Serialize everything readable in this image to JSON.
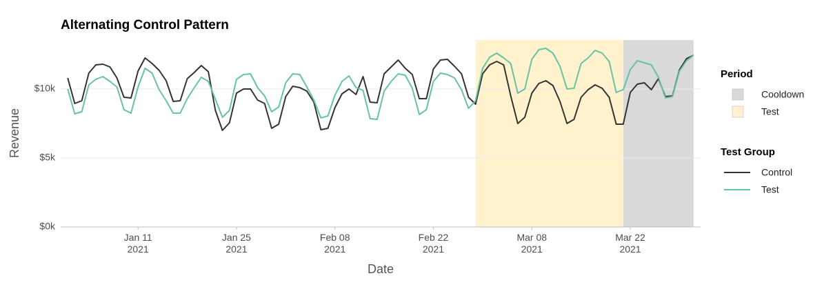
{
  "chart_data": {
    "type": "line",
    "title": "Alternating Control Pattern",
    "x_label": "Date",
    "y_label": "Revenue",
    "x": [
      "2021-01-01",
      "2021-01-02",
      "2021-01-03",
      "2021-01-04",
      "2021-01-05",
      "2021-01-06",
      "2021-01-07",
      "2021-01-08",
      "2021-01-09",
      "2021-01-10",
      "2021-01-11",
      "2021-01-12",
      "2021-01-13",
      "2021-01-14",
      "2021-01-15",
      "2021-01-16",
      "2021-01-17",
      "2021-01-18",
      "2021-01-19",
      "2021-01-20",
      "2021-01-21",
      "2021-01-22",
      "2021-01-23",
      "2021-01-24",
      "2021-01-25",
      "2021-01-26",
      "2021-01-27",
      "2021-01-28",
      "2021-01-29",
      "2021-01-30",
      "2021-01-31",
      "2021-02-01",
      "2021-02-02",
      "2021-02-03",
      "2021-02-04",
      "2021-02-05",
      "2021-02-06",
      "2021-02-07",
      "2021-02-08",
      "2021-02-09",
      "2021-02-10",
      "2021-02-11",
      "2021-02-12",
      "2021-02-13",
      "2021-02-14",
      "2021-02-15",
      "2021-02-16",
      "2021-02-17",
      "2021-02-18",
      "2021-02-19",
      "2021-02-20",
      "2021-02-21",
      "2021-02-22",
      "2021-02-23",
      "2021-02-24",
      "2021-02-25",
      "2021-02-26",
      "2021-02-27",
      "2021-02-28",
      "2021-03-01",
      "2021-03-02",
      "2021-03-03",
      "2021-03-04",
      "2021-03-05",
      "2021-03-06",
      "2021-03-07",
      "2021-03-08",
      "2021-03-09",
      "2021-03-10",
      "2021-03-11",
      "2021-03-12",
      "2021-03-13",
      "2021-03-14",
      "2021-03-15",
      "2021-03-16",
      "2021-03-17",
      "2021-03-18",
      "2021-03-19",
      "2021-03-20",
      "2021-03-21",
      "2021-03-22",
      "2021-03-23",
      "2021-03-24",
      "2021-03-25",
      "2021-03-26",
      "2021-03-27",
      "2021-03-28",
      "2021-03-29",
      "2021-03-30",
      "2021-03-31"
    ],
    "series": [
      {
        "name": "Control",
        "color": "#333333",
        "values": [
          10800,
          8950,
          9150,
          11150,
          11750,
          11800,
          11600,
          10800,
          9400,
          9350,
          11300,
          12250,
          11850,
          11350,
          10600,
          9100,
          9150,
          10750,
          11200,
          11700,
          11250,
          8450,
          7000,
          7550,
          9700,
          10000,
          10000,
          9200,
          8950,
          7150,
          7450,
          9450,
          10200,
          10100,
          9850,
          9050,
          7050,
          7150,
          8650,
          9650,
          10000,
          9600,
          10900,
          9050,
          9000,
          11100,
          11600,
          12100,
          11500,
          11050,
          9300,
          9300,
          11450,
          12100,
          12150,
          11650,
          11100,
          9400,
          8900,
          11100,
          11750,
          12000,
          11750,
          9500,
          7500,
          7950,
          9700,
          10400,
          10600,
          10250,
          9100,
          7500,
          7800,
          9400,
          9950,
          10300,
          10050,
          9400,
          7450,
          7450,
          9750,
          10350,
          10450,
          9950,
          10750,
          9450,
          9500,
          11400,
          12200,
          12450
        ]
      },
      {
        "name": "Test",
        "color": "#66c2a5",
        "values": [
          10000,
          8200,
          8350,
          10300,
          10700,
          10900,
          10550,
          10150,
          8500,
          8250,
          10150,
          11500,
          11150,
          9950,
          9150,
          8250,
          8250,
          9300,
          10100,
          10850,
          10550,
          9250,
          7950,
          8450,
          10700,
          11050,
          11100,
          10100,
          9500,
          8350,
          8700,
          10450,
          11100,
          11050,
          10150,
          9200,
          7900,
          8050,
          9550,
          10550,
          10950,
          10100,
          9900,
          7850,
          7800,
          9850,
          10550,
          11100,
          11000,
          10050,
          8150,
          8500,
          10550,
          11150,
          11050,
          10800,
          9950,
          8600,
          9150,
          11500,
          12300,
          12600,
          12250,
          11850,
          9700,
          10000,
          12150,
          12850,
          12950,
          12600,
          11650,
          10000,
          10050,
          11850,
          12250,
          12800,
          12600,
          12000,
          9750,
          9950,
          11400,
          12050,
          11900,
          11750,
          10850,
          9350,
          9450,
          11300,
          12050,
          12450
        ]
      }
    ],
    "periods": [
      {
        "name": "Cooldown",
        "start": "2021-03-21",
        "end": "2021-03-31",
        "color": "#d9d9d9"
      },
      {
        "name": "Test",
        "start": "2021-02-28",
        "end": "2021-03-21",
        "color": "#fff2cc"
      }
    ],
    "legend_titles": {
      "period": "Period",
      "series": "Test Group"
    },
    "xlim": [
      "2020-12-31",
      "2021-04-01"
    ],
    "xticks": [
      {
        "value": "2021-01-11",
        "label": "Jan 11\n2021"
      },
      {
        "value": "2021-01-25",
        "label": "Jan 25\n2021"
      },
      {
        "value": "2021-02-08",
        "label": "Feb 08\n2021"
      },
      {
        "value": "2021-02-22",
        "label": "Feb 22\n2021"
      },
      {
        "value": "2021-03-08",
        "label": "Mar 08\n2021"
      },
      {
        "value": "2021-03-22",
        "label": "Mar 22\n2021"
      }
    ],
    "ylim": [
      0,
      13550
    ],
    "yticks": [
      {
        "value": 0,
        "label": "$0k"
      },
      {
        "value": 5000,
        "label": "$5k"
      },
      {
        "value": 10000,
        "label": "$10k"
      }
    ],
    "grid": true,
    "legend_position": "right"
  }
}
